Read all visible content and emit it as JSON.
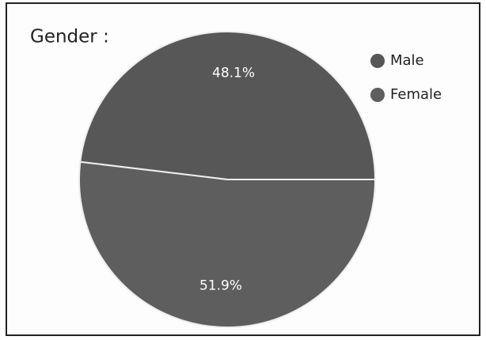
{
  "chart_data": {
    "type": "pie",
    "title": "Gender :",
    "categories": [
      "Male",
      "Female"
    ],
    "values": [
      48.1,
      51.9
    ],
    "value_labels": [
      "48.1%",
      "51.9%"
    ],
    "colors": [
      "#575757",
      "#5e5e5e"
    ],
    "legend": "top-right"
  }
}
